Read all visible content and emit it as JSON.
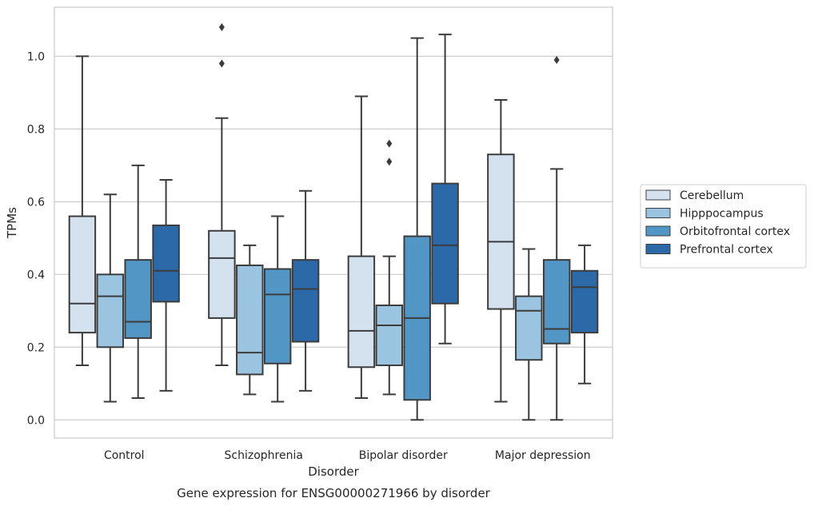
{
  "chart_data": {
    "type": "boxplot",
    "title": "Gene expression for ENSG00000271966 by disorder",
    "xlabel": "Disorder",
    "ylabel": "TPMs",
    "ylim": [
      -0.05,
      1.135
    ],
    "yticks": [
      0.0,
      0.2,
      0.4,
      0.6,
      0.8,
      1.0
    ],
    "ytick_labels": [
      "0.0",
      "0.2",
      "0.4",
      "0.6",
      "0.8",
      "1.0"
    ],
    "grid": "horizontal",
    "legend_position": "right",
    "categories": [
      "Control",
      "Schizophrenia",
      "Bipolar disorder",
      "Major depression"
    ],
    "series": [
      {
        "name": "Cerebellum",
        "color": "#d4e2f0",
        "boxes": [
          {
            "whislo": 0.15,
            "q1": 0.24,
            "med": 0.32,
            "q3": 0.56,
            "whishi": 1.0,
            "fliers": []
          },
          {
            "whislo": 0.15,
            "q1": 0.28,
            "med": 0.445,
            "q3": 0.52,
            "whishi": 0.83,
            "fliers": [
              0.98,
              1.08
            ]
          },
          {
            "whislo": 0.06,
            "q1": 0.145,
            "med": 0.245,
            "q3": 0.45,
            "whishi": 0.89,
            "fliers": []
          },
          {
            "whislo": 0.05,
            "q1": 0.305,
            "med": 0.49,
            "q3": 0.73,
            "whishi": 0.88,
            "fliers": []
          }
        ]
      },
      {
        "name": "Hipppocampus",
        "color": "#9ac4df",
        "boxes": [
          {
            "whislo": 0.05,
            "q1": 0.2,
            "med": 0.34,
            "q3": 0.4,
            "whishi": 0.62,
            "fliers": []
          },
          {
            "whislo": 0.07,
            "q1": 0.125,
            "med": 0.185,
            "q3": 0.425,
            "whishi": 0.48,
            "fliers": []
          },
          {
            "whislo": 0.07,
            "q1": 0.15,
            "med": 0.26,
            "q3": 0.315,
            "whishi": 0.45,
            "fliers": [
              0.71,
              0.76
            ]
          },
          {
            "whislo": 0.0,
            "q1": 0.165,
            "med": 0.3,
            "q3": 0.34,
            "whishi": 0.47,
            "fliers": []
          }
        ]
      },
      {
        "name": "Orbitofrontal cortex",
        "color": "#5196c5",
        "boxes": [
          {
            "whislo": 0.06,
            "q1": 0.225,
            "med": 0.27,
            "q3": 0.44,
            "whishi": 0.7,
            "fliers": []
          },
          {
            "whislo": 0.05,
            "q1": 0.155,
            "med": 0.345,
            "q3": 0.415,
            "whishi": 0.56,
            "fliers": []
          },
          {
            "whislo": 0.0,
            "q1": 0.055,
            "med": 0.28,
            "q3": 0.505,
            "whishi": 1.05,
            "fliers": []
          },
          {
            "whislo": 0.0,
            "q1": 0.21,
            "med": 0.25,
            "q3": 0.44,
            "whishi": 0.69,
            "fliers": [
              0.99
            ]
          }
        ]
      },
      {
        "name": "Prefrontal cortex",
        "color": "#2b69a8",
        "boxes": [
          {
            "whislo": 0.08,
            "q1": 0.325,
            "med": 0.41,
            "q3": 0.535,
            "whishi": 0.66,
            "fliers": []
          },
          {
            "whislo": 0.08,
            "q1": 0.215,
            "med": 0.36,
            "q3": 0.44,
            "whishi": 0.63,
            "fliers": []
          },
          {
            "whislo": 0.21,
            "q1": 0.32,
            "med": 0.48,
            "q3": 0.65,
            "whishi": 1.06,
            "fliers": []
          },
          {
            "whislo": 0.1,
            "q1": 0.24,
            "med": 0.365,
            "q3": 0.41,
            "whishi": 0.48,
            "fliers": []
          }
        ]
      }
    ]
  }
}
